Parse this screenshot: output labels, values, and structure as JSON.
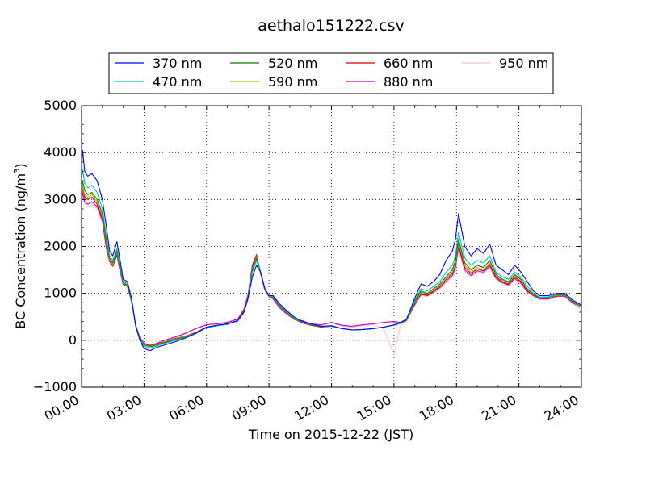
{
  "chart_data": {
    "type": "line",
    "title": "aethalo151222.csv",
    "xlabel": "Time on 2015-12-22 (JST)",
    "ylabel": "BC Concentration (ng/m",
    "ylabel_sup": "3",
    "ylabel_close": ")",
    "xlim": [
      0,
      24
    ],
    "ylim": [
      -1000,
      5000
    ],
    "x_ticks": [
      0,
      3,
      6,
      9,
      12,
      15,
      18,
      21,
      24
    ],
    "x_tick_labels": [
      "00:00",
      "03:00",
      "06:00",
      "09:00",
      "12:00",
      "15:00",
      "18:00",
      "21:00",
      "24:00"
    ],
    "y_ticks": [
      -1000,
      0,
      1000,
      2000,
      3000,
      4000,
      5000
    ],
    "y_tick_labels": [
      "−1000",
      "0",
      "1000",
      "2000",
      "3000",
      "4000",
      "5000"
    ],
    "grid": true,
    "legend_position": "top-center",
    "x_hours": [
      0,
      0.05,
      0.15,
      0.3,
      0.5,
      0.75,
      1.0,
      1.2,
      1.35,
      1.5,
      1.7,
      1.85,
      2.0,
      2.2,
      2.4,
      2.6,
      2.8,
      3.0,
      3.3,
      3.6,
      4.0,
      4.5,
      5.0,
      5.5,
      6.0,
      6.5,
      7.0,
      7.5,
      7.8,
      8.0,
      8.2,
      8.4,
      8.6,
      8.8,
      9.0,
      9.2,
      9.5,
      9.8,
      10.2,
      10.6,
      11.0,
      11.5,
      12.0,
      12.5,
      13.0,
      13.5,
      14.0,
      14.5,
      15.0,
      15.3,
      15.6,
      16.0,
      16.3,
      16.6,
      16.9,
      17.2,
      17.5,
      17.8,
      17.95,
      18.1,
      18.4,
      18.7,
      19.0,
      19.3,
      19.6,
      19.9,
      20.2,
      20.5,
      20.8,
      21.1,
      21.4,
      21.7,
      22.0,
      22.4,
      22.8,
      23.2,
      23.6,
      24.0
    ],
    "series": [
      {
        "name": "370 nm",
        "color": "#0000ff",
        "values": [
          3700,
          4050,
          3600,
          3500,
          3550,
          3400,
          3000,
          2400,
          1900,
          1800,
          2100,
          1700,
          1300,
          1250,
          900,
          300,
          0,
          -180,
          -220,
          -150,
          -100,
          -30,
          50,
          150,
          280,
          320,
          350,
          420,
          600,
          900,
          1350,
          1600,
          1450,
          1100,
          950,
          950,
          780,
          650,
          500,
          400,
          350,
          300,
          310,
          250,
          220,
          230,
          250,
          280,
          330,
          380,
          450,
          900,
          1200,
          1150,
          1250,
          1400,
          1700,
          1900,
          2150,
          2700,
          2000,
          1800,
          1950,
          1850,
          2050,
          1600,
          1500,
          1400,
          1600,
          1450,
          1250,
          1050,
          950,
          950,
          1000,
          1000,
          850,
          750
        ]
      },
      {
        "name": "470 nm",
        "color": "#00bfbf",
        "values": [
          3350,
          3650,
          3350,
          3250,
          3300,
          3150,
          2800,
          2200,
          1800,
          1700,
          1950,
          1600,
          1250,
          1200,
          870,
          300,
          20,
          -130,
          -170,
          -120,
          -70,
          0,
          60,
          150,
          270,
          310,
          340,
          410,
          600,
          900,
          1450,
          1700,
          1450,
          1100,
          950,
          930,
          760,
          630,
          480,
          390,
          340,
          300,
          300,
          250,
          220,
          230,
          250,
          280,
          320,
          370,
          440,
          850,
          1100,
          1050,
          1150,
          1250,
          1450,
          1600,
          1800,
          2300,
          1750,
          1600,
          1700,
          1650,
          1800,
          1450,
          1350,
          1300,
          1450,
          1350,
          1150,
          1000,
          920,
          920,
          980,
          980,
          830,
          740
        ]
      },
      {
        "name": "520 nm",
        "color": "#008000",
        "values": [
          3150,
          3400,
          3200,
          3100,
          3150,
          3000,
          2700,
          2100,
          1750,
          1650,
          1900,
          1550,
          1220,
          1180,
          850,
          310,
          40,
          -100,
          -140,
          -100,
          -50,
          20,
          70,
          160,
          270,
          310,
          340,
          410,
          620,
          920,
          1500,
          1750,
          1450,
          1100,
          950,
          920,
          750,
          620,
          470,
          380,
          330,
          290,
          300,
          250,
          220,
          230,
          250,
          280,
          320,
          360,
          430,
          820,
          1050,
          1000,
          1100,
          1200,
          1350,
          1500,
          1700,
          2150,
          1650,
          1500,
          1600,
          1550,
          1700,
          1400,
          1300,
          1250,
          1400,
          1300,
          1100,
          980,
          900,
          910,
          970,
          970,
          820,
          730
        ]
      },
      {
        "name": "590 nm",
        "color": "#bfbf00",
        "values": [
          3050,
          3300,
          3100,
          3050,
          3100,
          2950,
          2650,
          2050,
          1720,
          1620,
          1880,
          1530,
          1210,
          1170,
          840,
          310,
          50,
          -90,
          -130,
          -90,
          -40,
          30,
          80,
          160,
          270,
          310,
          340,
          410,
          630,
          930,
          1520,
          1780,
          1440,
          1090,
          940,
          910,
          740,
          610,
          460,
          380,
          330,
          290,
          300,
          250,
          220,
          230,
          250,
          280,
          320,
          360,
          430,
          800,
          1020,
          980,
          1080,
          1170,
          1320,
          1450,
          1650,
          2100,
          1600,
          1450,
          1550,
          1500,
          1650,
          1380,
          1280,
          1230,
          1380,
          1280,
          1080,
          970,
          900,
          900,
          960,
          960,
          810,
          720
        ]
      },
      {
        "name": "660 nm",
        "color": "#d40000",
        "values": [
          3000,
          3250,
          3050,
          3000,
          3050,
          2900,
          2600,
          2000,
          1700,
          1600,
          1850,
          1500,
          1200,
          1160,
          830,
          310,
          50,
          -80,
          -120,
          -80,
          -30,
          40,
          90,
          170,
          280,
          320,
          350,
          420,
          640,
          950,
          1550,
          1800,
          1430,
          1080,
          930,
          900,
          730,
          600,
          450,
          370,
          320,
          280,
          300,
          250,
          220,
          230,
          250,
          280,
          320,
          360,
          420,
          780,
          1000,
          960,
          1050,
          1150,
          1300,
          1420,
          1600,
          2050,
          1550,
          1420,
          1520,
          1480,
          1620,
          1350,
          1250,
          1200,
          1350,
          1250,
          1060,
          960,
          890,
          890,
          950,
          950,
          800,
          720
        ]
      },
      {
        "name": "880 nm",
        "color": "#bf00bf",
        "values": [
          2950,
          3150,
          2950,
          2900,
          2950,
          2850,
          2550,
          1950,
          1680,
          1580,
          1820,
          1480,
          1190,
          1150,
          820,
          320,
          60,
          -70,
          -110,
          -70,
          0,
          70,
          150,
          250,
          330,
          350,
          380,
          450,
          660,
          980,
          1600,
          1820,
          1420,
          1070,
          930,
          880,
          700,
          580,
          450,
          420,
          350,
          330,
          380,
          320,
          300,
          330,
          350,
          380,
          400,
          380,
          430,
          760,
          980,
          950,
          1030,
          1120,
          1260,
          1380,
          1550,
          2000,
          1500,
          1380,
          1480,
          1450,
          1580,
          1320,
          1230,
          1180,
          1320,
          1220,
          1040,
          950,
          880,
          880,
          940,
          940,
          790,
          710
        ]
      },
      {
        "name": "950 nm",
        "color": "#ffc0cb",
        "values": [
          2900,
          3050,
          2900,
          2850,
          2900,
          2800,
          2500,
          1900,
          1650,
          1560,
          1800,
          1450,
          1180,
          1140,
          810,
          320,
          70,
          -60,
          -100,
          -60,
          10,
          80,
          160,
          260,
          340,
          360,
          390,
          460,
          680,
          1000,
          1620,
          1850,
          1400,
          1060,
          920,
          870,
          690,
          570,
          440,
          410,
          340,
          320,
          370,
          300,
          280,
          310,
          330,
          250,
          -300,
          300,
          420,
          740,
          960,
          930,
          1010,
          1100,
          1230,
          1350,
          1500,
          1950,
          1450,
          1350,
          1450,
          1420,
          1550,
          1300,
          1200,
          1150,
          1300,
          1200,
          1020,
          940,
          870,
          870,
          930,
          930,
          780,
          650
        ]
      }
    ]
  }
}
